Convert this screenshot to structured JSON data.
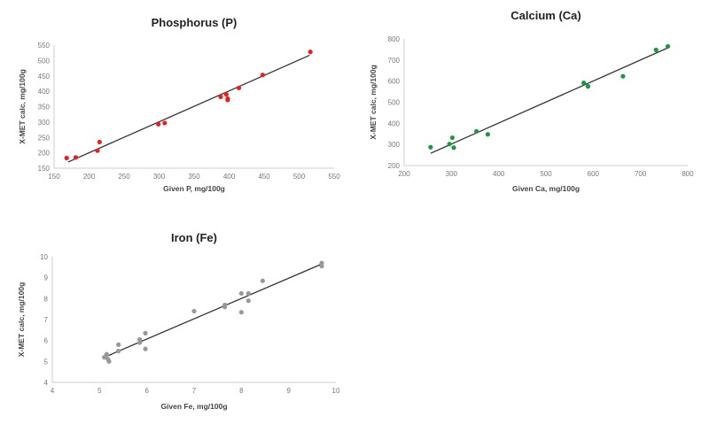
{
  "chart_data": [
    {
      "type": "scatter",
      "title": "Phosphorus (P)",
      "xlabel": "Given P, mg/100g",
      "ylabel": "X-MET calc, mg/100g",
      "xlim": [
        150,
        550
      ],
      "ylim": [
        150,
        550
      ],
      "xticks": [
        150,
        200,
        250,
        300,
        350,
        400,
        450,
        500,
        550
      ],
      "yticks": [
        150,
        200,
        250,
        300,
        350,
        400,
        450,
        500,
        550
      ],
      "color": "#ee1c1c",
      "grid": false,
      "points": [
        [
          168,
          183
        ],
        [
          181,
          185
        ],
        [
          212,
          207
        ],
        [
          215,
          235
        ],
        [
          299,
          293
        ],
        [
          308,
          297
        ],
        [
          388,
          382
        ],
        [
          396,
          390
        ],
        [
          398,
          372
        ],
        [
          398,
          376
        ],
        [
          414,
          411
        ],
        [
          448,
          453
        ],
        [
          516,
          528
        ]
      ],
      "trendline": [
        [
          170,
          170
        ],
        [
          515,
          517
        ]
      ]
    },
    {
      "type": "scatter",
      "title": "Calcium (Ca)",
      "xlabel": "Given Ca, mg/100g",
      "ylabel": "X-MET calc, mg/100g",
      "xlim": [
        200,
        800
      ],
      "ylim": [
        200,
        800
      ],
      "xticks": [
        200,
        300,
        400,
        500,
        600,
        700,
        800
      ],
      "yticks": [
        200,
        300,
        400,
        500,
        600,
        700,
        800
      ],
      "color": "#1a9a3c",
      "grid": false,
      "points": [
        [
          256,
          287
        ],
        [
          296,
          302
        ],
        [
          302,
          332
        ],
        [
          305,
          285
        ],
        [
          353,
          362
        ],
        [
          377,
          348
        ],
        [
          580,
          592
        ],
        [
          589,
          575
        ],
        [
          663,
          623
        ],
        [
          733,
          748
        ],
        [
          758,
          765
        ]
      ],
      "trendline": [
        [
          256,
          258
        ],
        [
          758,
          758
        ]
      ]
    },
    {
      "type": "scatter",
      "title": "Iron (Fe)",
      "xlabel": "Given Fe, mg/100g",
      "ylabel": "X-MET calc, mg/100g",
      "xlim": [
        4,
        10
      ],
      "ylim": [
        4,
        10
      ],
      "xticks": [
        4,
        5,
        6,
        7,
        8,
        9,
        10
      ],
      "yticks": [
        4,
        5,
        6,
        7,
        8,
        9,
        10
      ],
      "color": "#999999",
      "grid": false,
      "points": [
        [
          5.1,
          5.2
        ],
        [
          5.15,
          5.3
        ],
        [
          5.18,
          5.1
        ],
        [
          5.2,
          5.0
        ],
        [
          5.15,
          5.35
        ],
        [
          5.4,
          5.8
        ],
        [
          5.4,
          5.5
        ],
        [
          5.85,
          6.05
        ],
        [
          5.85,
          5.9
        ],
        [
          5.97,
          6.35
        ],
        [
          5.97,
          5.6
        ],
        [
          7.0,
          7.4
        ],
        [
          7.65,
          7.6
        ],
        [
          7.65,
          7.7
        ],
        [
          8.0,
          8.25
        ],
        [
          8.0,
          7.35
        ],
        [
          8.15,
          8.25
        ],
        [
          8.15,
          7.9
        ],
        [
          8.45,
          8.85
        ],
        [
          9.7,
          9.7
        ],
        [
          9.7,
          9.55
        ]
      ],
      "trendline": [
        [
          5.1,
          5.2
        ],
        [
          9.7,
          9.65
        ]
      ]
    }
  ]
}
